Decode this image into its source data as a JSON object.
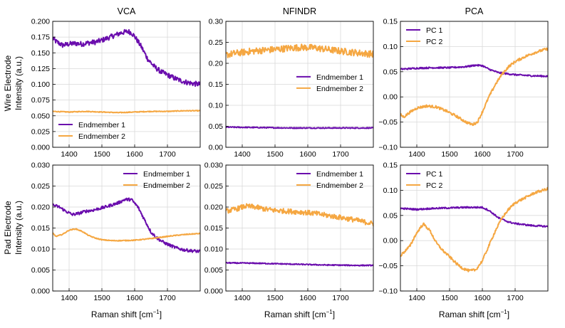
{
  "figure": {
    "column_titles": [
      "VCA",
      "NFINDR",
      "PCA"
    ],
    "row_labels": [
      [
        "Wire Electrode",
        "Intensity (a.u.)"
      ],
      [
        "Pad Electrode",
        "Intensity (a.u.)"
      ]
    ],
    "xlabel_text": "Raman shift [cm",
    "xlabel_sup": "−1",
    "xlabel_end": "]"
  },
  "colors": {
    "purple": "#6a0dad",
    "orange": "#f5a742"
  },
  "chart_data": [
    {
      "type": "line",
      "title": "VCA",
      "row": "Wire Electrode",
      "xlim": [
        1350,
        1800
      ],
      "ylim": [
        0,
        0.2
      ],
      "xticks": [
        1400,
        1500,
        1600,
        1700
      ],
      "yticks": [
        0,
        0.025,
        0.05,
        0.075,
        0.1,
        0.125,
        0.15,
        0.175,
        0.2
      ],
      "ytick_labels": [
        "0.000",
        "0.025",
        "0.050",
        "0.075",
        "0.100",
        "0.125",
        "0.150",
        "0.175",
        "0.200"
      ],
      "legend": "bottom-left",
      "series": [
        {
          "name": "Endmember 1",
          "color": "purple",
          "noise": 0.004,
          "x": [
            1350,
            1360,
            1380,
            1400,
            1420,
            1440,
            1460,
            1480,
            1500,
            1520,
            1540,
            1560,
            1580,
            1590,
            1600,
            1620,
            1640,
            1660,
            1680,
            1700,
            1720,
            1740,
            1760,
            1780,
            1800
          ],
          "y": [
            0.173,
            0.168,
            0.162,
            0.164,
            0.165,
            0.164,
            0.166,
            0.167,
            0.17,
            0.174,
            0.178,
            0.182,
            0.184,
            0.182,
            0.176,
            0.16,
            0.14,
            0.128,
            0.12,
            0.115,
            0.11,
            0.106,
            0.103,
            0.101,
            0.1
          ]
        },
        {
          "name": "Endmember 2",
          "color": "orange",
          "noise": 0.0006,
          "x": [
            1350,
            1400,
            1450,
            1500,
            1550,
            1600,
            1650,
            1700,
            1750,
            1800
          ],
          "y": [
            0.057,
            0.056,
            0.057,
            0.056,
            0.055,
            0.056,
            0.057,
            0.057,
            0.058,
            0.058
          ]
        }
      ]
    },
    {
      "type": "line",
      "title": "NFINDR",
      "row": "Wire Electrode",
      "xlim": [
        1350,
        1800
      ],
      "ylim": [
        0,
        0.3
      ],
      "xticks": [
        1400,
        1500,
        1600,
        1700
      ],
      "yticks": [
        0,
        0.05,
        0.1,
        0.15,
        0.2,
        0.25,
        0.3
      ],
      "ytick_labels": [
        "0.00",
        "0.05",
        "0.10",
        "0.15",
        "0.20",
        "0.25",
        "0.30"
      ],
      "legend": "center-right",
      "series": [
        {
          "name": "Endmember 1",
          "color": "purple",
          "noise": 0.0012,
          "x": [
            1350,
            1450,
            1550,
            1650,
            1750,
            1800
          ],
          "y": [
            0.048,
            0.047,
            0.046,
            0.046,
            0.046,
            0.046
          ]
        },
        {
          "name": "Endmember 2",
          "color": "orange",
          "noise": 0.008,
          "x": [
            1350,
            1380,
            1420,
            1460,
            1500,
            1540,
            1580,
            1620,
            1660,
            1700,
            1740,
            1780,
            1800
          ],
          "y": [
            0.22,
            0.224,
            0.228,
            0.231,
            0.233,
            0.236,
            0.238,
            0.237,
            0.233,
            0.229,
            0.226,
            0.223,
            0.222
          ]
        }
      ]
    },
    {
      "type": "line",
      "title": "PCA",
      "row": "Wire Electrode",
      "xlim": [
        1350,
        1800
      ],
      "ylim": [
        -0.1,
        0.15
      ],
      "xticks": [
        1400,
        1500,
        1600,
        1700
      ],
      "yticks": [
        -0.1,
        -0.05,
        0,
        0.05,
        0.1,
        0.15
      ],
      "ytick_labels": [
        "−0.10",
        "−0.05",
        "0.00",
        "0.05",
        "0.10",
        "0.15"
      ],
      "legend": "top-left",
      "series": [
        {
          "name": "PC 1",
          "color": "purple",
          "noise": 0.0015,
          "x": [
            1350,
            1400,
            1450,
            1500,
            1550,
            1580,
            1600,
            1620,
            1650,
            1700,
            1750,
            1800
          ],
          "y": [
            0.055,
            0.057,
            0.058,
            0.058,
            0.06,
            0.063,
            0.062,
            0.055,
            0.048,
            0.044,
            0.042,
            0.041
          ]
        },
        {
          "name": "PC 2",
          "color": "orange",
          "noise": 0.0025,
          "x": [
            1350,
            1360,
            1380,
            1400,
            1430,
            1460,
            1490,
            1520,
            1550,
            1570,
            1585,
            1600,
            1620,
            1640,
            1660,
            1680,
            1700,
            1730,
            1760,
            1790,
            1800
          ],
          "y": [
            -0.035,
            -0.04,
            -0.03,
            -0.022,
            -0.018,
            -0.02,
            -0.028,
            -0.038,
            -0.05,
            -0.055,
            -0.05,
            -0.03,
            0.0,
            0.025,
            0.045,
            0.06,
            0.07,
            0.08,
            0.088,
            0.094,
            0.095
          ]
        }
      ]
    },
    {
      "type": "line",
      "title": "VCA",
      "row": "Pad Electrode",
      "xlim": [
        1350,
        1800
      ],
      "ylim": [
        0,
        0.03
      ],
      "xticks": [
        1400,
        1500,
        1600,
        1700
      ],
      "yticks": [
        0,
        0.005,
        0.01,
        0.015,
        0.02,
        0.025,
        0.03
      ],
      "ytick_labels": [
        "0.000",
        "0.005",
        "0.010",
        "0.015",
        "0.020",
        "0.025",
        "0.030"
      ],
      "legend": "top-right",
      "series": [
        {
          "name": "Endmember 1",
          "color": "purple",
          "noise": 0.00035,
          "x": [
            1350,
            1370,
            1390,
            1410,
            1430,
            1450,
            1470,
            1490,
            1510,
            1530,
            1550,
            1570,
            1590,
            1610,
            1630,
            1650,
            1670,
            1690,
            1710,
            1730,
            1750,
            1770,
            1800
          ],
          "y": [
            0.0205,
            0.02,
            0.019,
            0.0182,
            0.0185,
            0.019,
            0.0192,
            0.0196,
            0.02,
            0.0205,
            0.021,
            0.0218,
            0.0218,
            0.02,
            0.017,
            0.014,
            0.0125,
            0.0115,
            0.0108,
            0.0102,
            0.0098,
            0.0096,
            0.0094
          ]
        },
        {
          "name": "Endmember 2",
          "color": "orange",
          "noise": 0.0001,
          "x": [
            1350,
            1360,
            1380,
            1400,
            1420,
            1440,
            1460,
            1480,
            1500,
            1530,
            1560,
            1600,
            1640,
            1680,
            1720,
            1760,
            1800
          ],
          "y": [
            0.0138,
            0.013,
            0.0135,
            0.0145,
            0.0148,
            0.0142,
            0.0132,
            0.0126,
            0.0122,
            0.012,
            0.012,
            0.0121,
            0.0124,
            0.0128,
            0.0132,
            0.0135,
            0.0137
          ]
        }
      ]
    },
    {
      "type": "line",
      "title": "NFINDR",
      "row": "Pad Electrode",
      "xlim": [
        1350,
        1800
      ],
      "ylim": [
        0,
        0.03
      ],
      "xticks": [
        1400,
        1500,
        1600,
        1700
      ],
      "yticks": [
        0,
        0.005,
        0.01,
        0.015,
        0.02,
        0.025,
        0.03
      ],
      "ytick_labels": [
        "0.000",
        "0.005",
        "0.010",
        "0.015",
        "0.020",
        "0.025",
        "0.030"
      ],
      "legend": "top-right",
      "series": [
        {
          "name": "Endmember 1",
          "color": "purple",
          "noise": 0.00012,
          "x": [
            1350,
            1450,
            1550,
            1650,
            1750,
            1800
          ],
          "y": [
            0.0067,
            0.0066,
            0.0064,
            0.0062,
            0.0061,
            0.0061
          ]
        },
        {
          "name": "Endmember 2",
          "color": "orange",
          "noise": 0.0006,
          "x": [
            1350,
            1380,
            1410,
            1440,
            1470,
            1500,
            1540,
            1580,
            1620,
            1660,
            1700,
            1740,
            1770,
            1800
          ],
          "y": [
            0.019,
            0.0195,
            0.0202,
            0.02,
            0.0195,
            0.0192,
            0.019,
            0.0188,
            0.0185,
            0.018,
            0.0175,
            0.017,
            0.0165,
            0.016
          ]
        }
      ]
    },
    {
      "type": "line",
      "title": "PCA",
      "row": "Pad Electrode",
      "xlim": [
        1350,
        1800
      ],
      "ylim": [
        -0.1,
        0.15
      ],
      "xticks": [
        1400,
        1500,
        1600,
        1700
      ],
      "yticks": [
        -0.1,
        -0.05,
        0,
        0.05,
        0.1,
        0.15
      ],
      "ytick_labels": [
        "−0.10",
        "−0.05",
        "0.00",
        "0.05",
        "0.10",
        "0.15"
      ],
      "legend": "top-left",
      "series": [
        {
          "name": "PC 1",
          "color": "purple",
          "noise": 0.0015,
          "x": [
            1350,
            1400,
            1450,
            1500,
            1550,
            1600,
            1620,
            1650,
            1680,
            1700,
            1750,
            1800
          ],
          "y": [
            0.064,
            0.062,
            0.064,
            0.065,
            0.066,
            0.066,
            0.06,
            0.045,
            0.037,
            0.034,
            0.03,
            0.028
          ]
        },
        {
          "name": "PC 2",
          "color": "orange",
          "noise": 0.0025,
          "x": [
            1350,
            1365,
            1380,
            1395,
            1410,
            1420,
            1440,
            1460,
            1480,
            1500,
            1520,
            1540,
            1560,
            1580,
            1600,
            1620,
            1640,
            1660,
            1680,
            1700,
            1730,
            1760,
            1800
          ],
          "y": [
            -0.03,
            -0.02,
            -0.01,
            0.01,
            0.025,
            0.033,
            0.02,
            -0.005,
            -0.02,
            -0.032,
            -0.045,
            -0.055,
            -0.06,
            -0.058,
            -0.04,
            -0.01,
            0.02,
            0.045,
            0.062,
            0.075,
            0.085,
            0.095,
            0.103
          ]
        }
      ]
    }
  ]
}
